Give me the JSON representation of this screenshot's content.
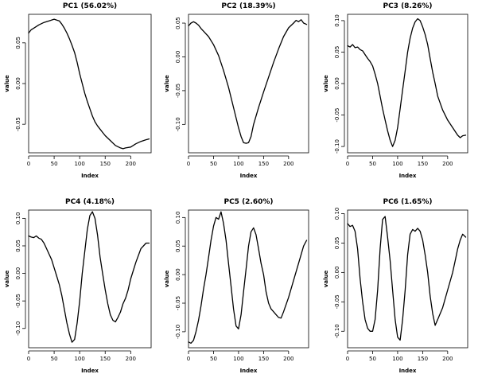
{
  "chart_data": [
    {
      "type": "line",
      "title": "PC1 (56.02%)",
      "xlabel": "Index",
      "ylabel": "value",
      "xlim": [
        0,
        240
      ],
      "ylim": [
        -0.085,
        0.085
      ],
      "xticks": [
        0,
        50,
        100,
        150,
        200
      ],
      "yticks": [
        -0.05,
        0,
        0.05
      ],
      "ytick_labels": [
        "-0.05",
        "0.00",
        "0.05"
      ],
      "grid": false,
      "series": [
        {
          "x": [
            0,
            5,
            10,
            20,
            30,
            40,
            50,
            55,
            60,
            65,
            70,
            75,
            80,
            85,
            90,
            95,
            100,
            105,
            110,
            115,
            120,
            125,
            130,
            135,
            140,
            145,
            150,
            160,
            170,
            180,
            185,
            190,
            200,
            210,
            220,
            230,
            236
          ],
          "values": [
            0.062,
            0.066,
            0.068,
            0.072,
            0.075,
            0.077,
            0.079,
            0.078,
            0.077,
            0.073,
            0.068,
            0.062,
            0.055,
            0.047,
            0.038,
            0.026,
            0.012,
            0.0,
            -0.012,
            -0.022,
            -0.031,
            -0.04,
            -0.047,
            -0.052,
            -0.056,
            -0.06,
            -0.064,
            -0.07,
            -0.076,
            -0.079,
            -0.08,
            -0.079,
            -0.078,
            -0.074,
            -0.071,
            -0.069,
            -0.068
          ]
        }
      ]
    },
    {
      "type": "line",
      "title": "PC2 (18.39%)",
      "xlabel": "Index",
      "ylabel": "value",
      "xlim": [
        0,
        240
      ],
      "ylim": [
        -0.142,
        0.063
      ],
      "xticks": [
        0,
        50,
        100,
        150,
        200
      ],
      "yticks": [
        -0.1,
        -0.05,
        0,
        0.05
      ],
      "ytick_labels": [
        "-0.10",
        "-0.05",
        "0.00",
        "0.05"
      ],
      "grid": false,
      "series": [
        {
          "x": [
            0,
            5,
            10,
            15,
            20,
            25,
            30,
            40,
            50,
            60,
            70,
            80,
            90,
            100,
            105,
            110,
            115,
            120,
            125,
            130,
            140,
            150,
            160,
            170,
            180,
            190,
            200,
            210,
            215,
            220,
            225,
            230,
            236
          ],
          "values": [
            0.046,
            0.05,
            0.052,
            0.05,
            0.047,
            0.042,
            0.038,
            0.03,
            0.018,
            0.002,
            -0.02,
            -0.045,
            -0.075,
            -0.105,
            -0.118,
            -0.127,
            -0.128,
            -0.127,
            -0.118,
            -0.1,
            -0.075,
            -0.052,
            -0.03,
            -0.008,
            0.012,
            0.03,
            0.043,
            0.05,
            0.054,
            0.052,
            0.055,
            0.05,
            0.048
          ]
        }
      ]
    },
    {
      "type": "line",
      "title": "PC3 (8.26%)",
      "xlabel": "Index",
      "ylabel": "value",
      "xlim": [
        0,
        240
      ],
      "ylim": [
        -0.11,
        0.11
      ],
      "xticks": [
        0,
        50,
        100,
        150,
        200
      ],
      "yticks": [
        -0.1,
        -0.05,
        0,
        0.05,
        0.1
      ],
      "ytick_labels": [
        "-0.10",
        "-0.05",
        "0.00",
        "0.05",
        "0.10"
      ],
      "grid": false,
      "series": [
        {
          "x": [
            0,
            5,
            10,
            15,
            20,
            25,
            30,
            35,
            40,
            45,
            50,
            55,
            60,
            65,
            70,
            75,
            80,
            85,
            90,
            95,
            100,
            105,
            110,
            115,
            120,
            125,
            130,
            135,
            140,
            145,
            150,
            155,
            160,
            165,
            170,
            175,
            180,
            190,
            200,
            210,
            220,
            225,
            230,
            236
          ],
          "values": [
            0.06,
            0.058,
            0.062,
            0.057,
            0.058,
            0.054,
            0.052,
            0.046,
            0.04,
            0.035,
            0.028,
            0.015,
            0.0,
            -0.02,
            -0.04,
            -0.058,
            -0.075,
            -0.09,
            -0.1,
            -0.09,
            -0.07,
            -0.04,
            -0.01,
            0.02,
            0.05,
            0.072,
            0.088,
            0.098,
            0.103,
            0.1,
            0.09,
            0.078,
            0.062,
            0.04,
            0.018,
            0.0,
            -0.02,
            -0.042,
            -0.058,
            -0.07,
            -0.082,
            -0.086,
            -0.083,
            -0.082
          ]
        }
      ]
    },
    {
      "type": "line",
      "title": "PC4 (4.18%)",
      "xlabel": "Index",
      "ylabel": "value",
      "xlim": [
        0,
        240
      ],
      "ylim": [
        -0.135,
        0.115
      ],
      "xticks": [
        0,
        50,
        100,
        150,
        200
      ],
      "yticks": [
        -0.1,
        -0.05,
        0,
        0.05,
        0.1
      ],
      "ytick_labels": [
        "-0.10",
        "-0.05",
        "0.00",
        "0.05",
        "0.10"
      ],
      "grid": false,
      "series": [
        {
          "x": [
            0,
            5,
            10,
            15,
            20,
            25,
            30,
            35,
            40,
            45,
            50,
            55,
            60,
            65,
            70,
            75,
            80,
            85,
            90,
            95,
            100,
            105,
            110,
            115,
            120,
            125,
            130,
            135,
            140,
            145,
            150,
            155,
            160,
            165,
            170,
            175,
            180,
            185,
            190,
            195,
            200,
            210,
            220,
            225,
            230,
            236
          ],
          "values": [
            0.068,
            0.066,
            0.065,
            0.068,
            0.064,
            0.062,
            0.055,
            0.045,
            0.035,
            0.025,
            0.01,
            -0.005,
            -0.02,
            -0.04,
            -0.065,
            -0.09,
            -0.11,
            -0.125,
            -0.12,
            -0.09,
            -0.05,
            0.0,
            0.04,
            0.08,
            0.105,
            0.112,
            0.1,
            0.07,
            0.03,
            0.0,
            -0.03,
            -0.055,
            -0.075,
            -0.085,
            -0.088,
            -0.08,
            -0.07,
            -0.055,
            -0.045,
            -0.03,
            -0.01,
            0.02,
            0.045,
            0.05,
            0.055,
            0.055
          ]
        }
      ]
    },
    {
      "type": "line",
      "title": "PC5 (2.60%)",
      "xlabel": "Index",
      "ylabel": "value",
      "xlim": [
        0,
        240
      ],
      "ylim": [
        -0.128,
        0.113
      ],
      "xticks": [
        0,
        50,
        100,
        150,
        200
      ],
      "yticks": [
        -0.1,
        -0.05,
        0,
        0.05,
        0.1
      ],
      "ytick_labels": [
        "-0.10",
        "-0.05",
        "0.00",
        "0.05",
        "0.10"
      ],
      "grid": false,
      "series": [
        {
          "x": [
            0,
            5,
            10,
            15,
            20,
            25,
            30,
            35,
            40,
            45,
            50,
            55,
            60,
            65,
            70,
            75,
            80,
            85,
            90,
            95,
            100,
            105,
            110,
            115,
            120,
            125,
            130,
            135,
            140,
            145,
            150,
            155,
            160,
            165,
            170,
            175,
            180,
            185,
            190,
            200,
            210,
            220,
            230,
            236
          ],
          "values": [
            -0.118,
            -0.12,
            -0.115,
            -0.1,
            -0.08,
            -0.055,
            -0.025,
            0.0,
            0.03,
            0.06,
            0.085,
            0.1,
            0.097,
            0.11,
            0.09,
            0.06,
            0.02,
            -0.02,
            -0.06,
            -0.09,
            -0.095,
            -0.07,
            -0.03,
            0.01,
            0.05,
            0.075,
            0.082,
            0.07,
            0.045,
            0.02,
            0.0,
            -0.03,
            -0.05,
            -0.06,
            -0.065,
            -0.07,
            -0.075,
            -0.076,
            -0.065,
            -0.04,
            -0.01,
            0.02,
            0.05,
            0.06
          ]
        }
      ]
    },
    {
      "type": "line",
      "title": "PC6 (1.65%)",
      "xlabel": "Index",
      "ylabel": "value",
      "xlim": [
        0,
        240
      ],
      "ylim": [
        -0.128,
        0.106
      ],
      "xticks": [
        0,
        50,
        100,
        150,
        200
      ],
      "yticks": [
        -0.1,
        -0.05,
        0,
        0.05,
        0.1
      ],
      "ytick_labels": [
        "-0.10",
        "-0.05",
        "0.00",
        "0.05",
        "0.10"
      ],
      "grid": false,
      "series": [
        {
          "x": [
            0,
            5,
            10,
            15,
            20,
            25,
            30,
            35,
            40,
            45,
            50,
            55,
            60,
            65,
            70,
            75,
            80,
            85,
            90,
            95,
            100,
            105,
            110,
            115,
            120,
            125,
            130,
            135,
            140,
            145,
            150,
            155,
            160,
            165,
            170,
            175,
            180,
            190,
            200,
            210,
            215,
            220,
            225,
            230,
            236
          ],
          "values": [
            0.083,
            0.078,
            0.08,
            0.07,
            0.04,
            -0.01,
            -0.05,
            -0.08,
            -0.095,
            -0.1,
            -0.1,
            -0.08,
            -0.03,
            0.04,
            0.09,
            0.095,
            0.06,
            0.02,
            -0.03,
            -0.08,
            -0.11,
            -0.115,
            -0.08,
            -0.03,
            0.03,
            0.065,
            0.073,
            0.07,
            0.075,
            0.07,
            0.055,
            0.03,
            0.0,
            -0.04,
            -0.07,
            -0.09,
            -0.08,
            -0.06,
            -0.03,
            0.0,
            0.02,
            0.04,
            0.055,
            0.065,
            0.06
          ]
        }
      ]
    }
  ]
}
